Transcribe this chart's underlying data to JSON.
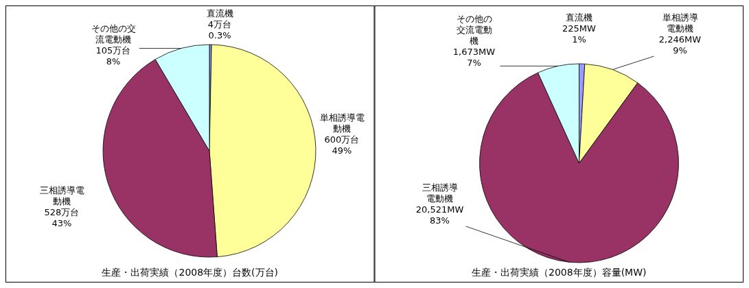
{
  "chart_data": [
    {
      "type": "pie",
      "title": "生産・出荷実績（2008年度）台数(万台)",
      "categories": [
        "直流機",
        "単相誘導電動機",
        "三相誘導電動機",
        "その他の交流電動機"
      ],
      "values": [
        4,
        600,
        528,
        105
      ],
      "value_labels": [
        "4万台\n0.3%",
        "600万台\n49%",
        "528万台\n43%",
        "105万台\n8%"
      ],
      "colors": [
        "#9999ff",
        "#ffff99",
        "#993366",
        "#ccffff"
      ]
    },
    {
      "type": "pie",
      "title": "生産・出荷実績（2008年度）容量(MW)",
      "categories": [
        "直流機",
        "単相誘導電動機",
        "三相誘導電動機",
        "その他の交流電動機"
      ],
      "values": [
        225,
        2246,
        20521,
        1673
      ],
      "value_labels": [
        "225MW\n1%",
        "2,246MW\n9%",
        "20,521MW\n83%",
        "1,673MW\n7%"
      ],
      "colors": [
        "#9999ff",
        "#ffff99",
        "#993366",
        "#ccffff"
      ]
    }
  ]
}
